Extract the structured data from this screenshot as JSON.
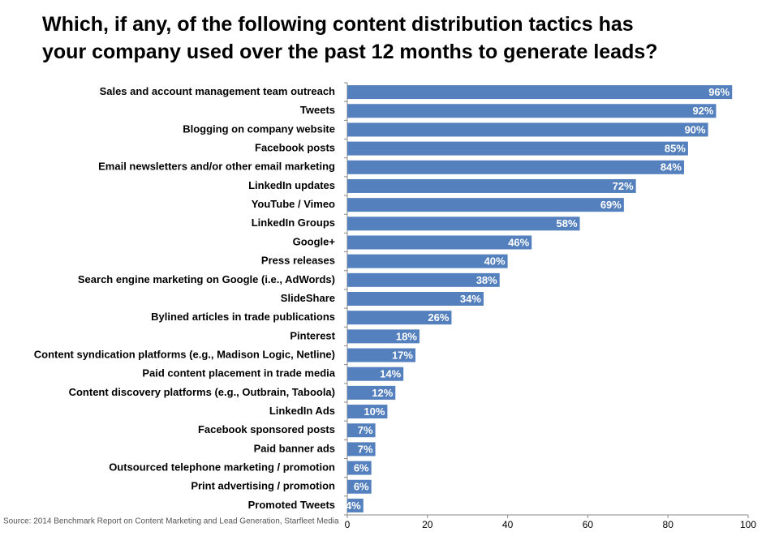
{
  "chart_data": {
    "type": "bar",
    "orientation": "horizontal",
    "title_lines": [
      "Which, if any, of the following content distribution tactics has",
      "your company used over the past 12 months to generate leads?"
    ],
    "categories": [
      "Sales and account management team outreach",
      "Tweets",
      "Blogging on company website",
      "Facebook posts",
      "Email newsletters and/or other email marketing",
      "LinkedIn updates",
      "YouTube / Vimeo",
      "LinkedIn Groups",
      "Google+",
      "Press releases",
      "Search engine marketing on Google (i.e., AdWords)",
      "SlideShare",
      "Bylined articles in trade publications",
      "Pinterest",
      "Content syndication platforms (e.g., Madison Logic, Netline)",
      "Paid content placement in trade media",
      "Content discovery platforms (e.g., Outbrain, Taboola)",
      "LinkedIn Ads",
      "Facebook sponsored posts",
      "Paid banner ads",
      "Outsourced telephone marketing / promotion",
      "Print advertising / promotion",
      "Promoted Tweets"
    ],
    "values": [
      96,
      92,
      90,
      85,
      84,
      72,
      69,
      58,
      46,
      40,
      38,
      34,
      26,
      18,
      17,
      14,
      12,
      10,
      7,
      7,
      6,
      6,
      4
    ],
    "value_labels": [
      "96%",
      "92%",
      "90%",
      "85%",
      "84%",
      "72%",
      "69%",
      "58%",
      "46%",
      "40%",
      "38%",
      "34%",
      "26%",
      "18%",
      "17%",
      "14%",
      "12%",
      "10%",
      "7%",
      "7%",
      "6%",
      "6%",
      "4%"
    ],
    "color": "#5480be",
    "xlim": [
      0,
      100
    ],
    "xticks": [
      0,
      20,
      40,
      60,
      80,
      100
    ],
    "source": "Source: 2014 Benchmark Report on Content Marketing and Lead Generation, Starfleet Media"
  }
}
